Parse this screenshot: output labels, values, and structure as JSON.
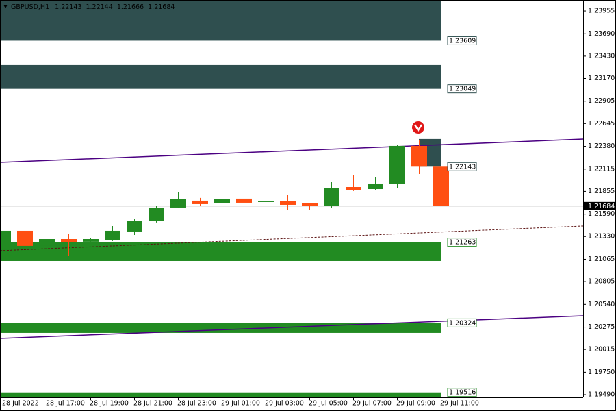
{
  "chart_data": {
    "type": "candlestick",
    "symbol": "GBPUSD,H1",
    "x": [
      "28 Jul 2022",
      null,
      "28 Jul 17:00",
      null,
      "28 Jul 19:00",
      null,
      "28 Jul 21:00",
      null,
      "28 Jul 23:00",
      null,
      "29 Jul 01:00",
      null,
      "29 Jul 03:00",
      null,
      "29 Jul 05:00",
      null,
      "29 Jul 07:00",
      null,
      "29 Jul 09:00",
      null,
      "29 Jul 11:00"
    ],
    "open": [
      1.21173,
      1.21396,
      1.21221,
      1.213,
      1.21269,
      1.21292,
      1.21388,
      1.21508,
      1.21667,
      1.21747,
      1.21715,
      1.21771,
      1.21731,
      1.21739,
      1.21715,
      1.21683,
      1.21906,
      1.21882,
      1.21938,
      1.22385,
      1.22143
    ],
    "high": [
      1.21492,
      1.21659,
      1.21324,
      1.21364,
      1.21316,
      1.21452,
      1.21532,
      1.21691,
      1.21843,
      1.21779,
      1.21771,
      1.21787,
      1.21779,
      1.21811,
      1.21723,
      1.2197,
      1.22042,
      1.22026,
      1.22393,
      1.22449,
      1.22144
    ],
    "low": [
      1.21149,
      1.21149,
      1.21197,
      1.21101,
      1.21245,
      1.21277,
      1.21348,
      1.21492,
      1.21659,
      1.21683,
      1.21627,
      1.21699,
      1.21675,
      1.21643,
      1.21635,
      1.21659,
      1.21859,
      1.21867,
      1.2189,
      1.22058,
      1.21666
    ],
    "close": [
      1.21396,
      1.21221,
      1.213,
      1.21261,
      1.213,
      1.21396,
      1.21508,
      1.21667,
      1.21763,
      1.21707,
      1.21763,
      1.21723,
      1.21739,
      1.21699,
      1.21683,
      1.21898,
      1.21874,
      1.21946,
      1.22385,
      1.22143,
      1.21684
    ],
    "up_color": "#228b22",
    "down_color": "#ff4f12",
    "current_price": 1.21684,
    "ylim": [
      1.19458,
      1.24083
    ],
    "yticks": [
      1.23955,
      {
        "value": 1.2369,
        "label": "1.23690"
      },
      {
        "value": 1.2343,
        "label": "1.23430"
      },
      {
        "value": 1.2317,
        "label": "1.23170"
      },
      1.22905,
      1.22645,
      {
        "value": 1.2238,
        "label": "1.22380"
      },
      1.22115,
      1.21855,
      {
        "value": 1.2159,
        "label": "1.21590"
      },
      {
        "value": 1.2133,
        "label": "1.21330"
      },
      1.21065,
      1.20805,
      {
        "value": 1.2054,
        "label": "1.20540"
      },
      1.20275,
      1.20015,
      {
        "value": 1.1975,
        "label": "1.19750"
      },
      {
        "value": 1.1949,
        "label": "1.19490"
      }
    ],
    "zones": [
      {
        "level": 1.23609,
        "extent": 1.24067,
        "color": "#2f4f4f"
      },
      {
        "level": 1.23049,
        "extent": 1.23326,
        "color": "#2f4f4f"
      },
      {
        "level": 1.22143,
        "extent": 1.22465,
        "color": "#2f4f4f",
        "short": true
      },
      {
        "level": 1.21263,
        "extent": 1.21045,
        "color": "#228b22"
      },
      {
        "level": 1.20324,
        "extent": 1.20208,
        "color": "#228b22"
      },
      {
        "level": 1.19516,
        "extent": 1.19458,
        "color": "#228b22"
      }
    ],
    "lines": [
      {
        "start": 1.22193,
        "end": 1.22464,
        "color": "#4b0082",
        "dashed": false
      },
      {
        "start": 1.20144,
        "end": 1.20407,
        "color": "#4b0082",
        "dashed": false
      },
      {
        "start": 1.21165,
        "end": 1.21452,
        "color": "#5a1010",
        "dashed": true
      }
    ]
  }
}
